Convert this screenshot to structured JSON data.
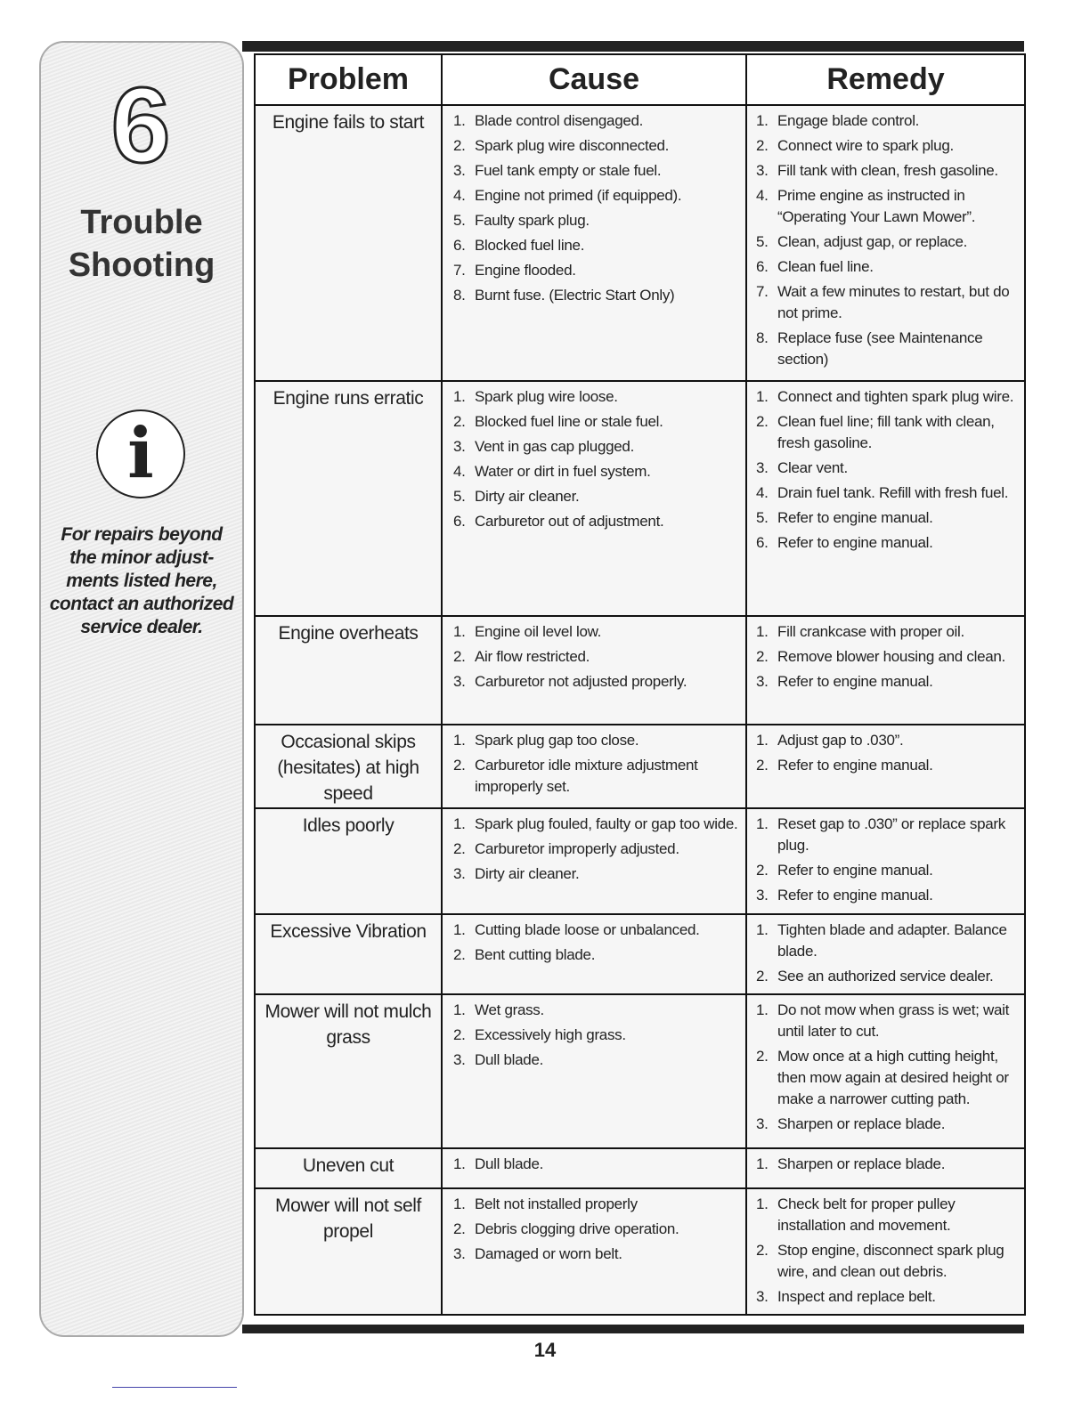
{
  "sidebar": {
    "chapter": "6",
    "title_line1": "Trouble",
    "title_line2": "Shooting",
    "info_icon": "info-icon",
    "note": [
      "For repairs beyond",
      "the minor adjust-",
      "ments listed here,",
      "contact an authorized",
      "service dealer."
    ]
  },
  "table": {
    "headers": [
      "Problem",
      "Cause",
      "Remedy"
    ],
    "rows": [
      {
        "problem": "Engine fails to start",
        "causes": [
          "Blade control disengaged.",
          "Spark plug wire disconnected.",
          "Fuel tank empty or stale fuel.",
          "Engine not primed (if equipped).",
          "Faulty spark plug.",
          "Blocked fuel line.",
          "Engine flooded.",
          "Burnt fuse. (Electric Start Only)"
        ],
        "remedies": [
          "Engage blade control.",
          "Connect wire to spark plug.",
          "Fill tank with clean, fresh gasoline.",
          "Prime engine as instructed in “Operating Your Lawn Mower”.",
          "Clean, adjust gap, or replace.",
          "Clean fuel line.",
          "Wait a few minutes to restart, but do not prime.",
          "Replace fuse (see Maintenance section)"
        ]
      },
      {
        "problem": "Engine runs erratic",
        "causes": [
          "Spark plug wire loose.",
          "Blocked fuel line or stale fuel.",
          "Vent in gas cap plugged.",
          "Water or dirt in fuel system.",
          "Dirty air cleaner.",
          "Carburetor out of adjustment."
        ],
        "remedies": [
          "Connect and tighten spark plug wire.",
          "Clean fuel line; fill tank with clean, fresh gasoline.",
          "Clear vent.",
          "Drain fuel tank. Refill with fresh fuel.",
          "Refer to engine manual.",
          "Refer to engine manual."
        ]
      },
      {
        "problem": "Engine overheats",
        "causes": [
          "Engine oil level low.",
          "Air flow restricted.",
          "Carburetor not adjusted properly."
        ],
        "remedies": [
          "Fill crankcase with proper oil.",
          "Remove blower housing and clean.",
          "Refer to engine manual."
        ]
      },
      {
        "problem": "Occasional skips (hesitates) at high speed",
        "causes": [
          "Spark plug gap too close.",
          "Carburetor idle mixture adjustment improperly set."
        ],
        "remedies": [
          "Adjust gap to .030”.",
          "Refer to engine manual."
        ]
      },
      {
        "problem": "Idles poorly",
        "causes": [
          "Spark plug fouled, faulty or gap too wide.",
          "Carburetor improperly adjusted.",
          "Dirty air cleaner."
        ],
        "remedies": [
          "Reset gap to .030” or replace spark plug.",
          "Refer to engine manual.",
          "Refer to engine manual."
        ]
      },
      {
        "problem": "Excessive Vibration",
        "causes": [
          "Cutting blade loose or unbalanced.",
          "Bent cutting blade."
        ],
        "remedies": [
          "Tighten blade and adapter. Balance blade.",
          "See an authorized service dealer."
        ]
      },
      {
        "problem": "Mower will not mulch grass",
        "causes": [
          "Wet grass.",
          "Excessively high grass.",
          "Dull blade."
        ],
        "remedies": [
          "Do not mow when grass is wet; wait until later to cut.",
          "Mow once at a high cutting height, then mow again at desired height or make a narrower cutting path.",
          "Sharpen or replace blade."
        ]
      },
      {
        "problem": "Uneven cut",
        "causes": [
          "Dull blade."
        ],
        "remedies": [
          "Sharpen or replace blade."
        ]
      },
      {
        "problem": "Mower will not self propel",
        "causes": [
          "Belt not installed properly",
          "Debris clogging drive operation.",
          "Damaged or worn belt."
        ],
        "remedies": [
          "Check belt for proper pulley installation and movement.",
          "Stop engine, disconnect spark plug wire, and clean out debris.",
          "Inspect and replace belt."
        ]
      }
    ]
  },
  "page_number": "14"
}
